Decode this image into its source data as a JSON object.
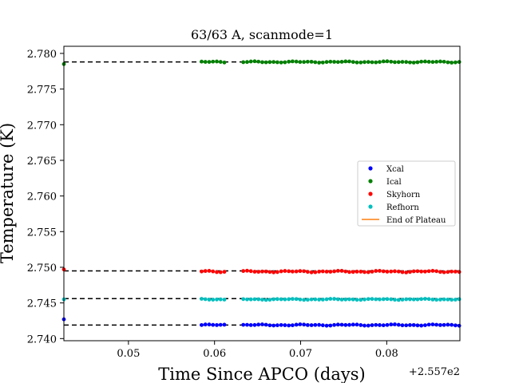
{
  "chart_data": {
    "type": "scatter",
    "title": "63/63 A, scanmode=1",
    "xlabel": "Time Since APCO (days)",
    "ylabel": "Temperature (K)",
    "x_offset_label": "+2.557e2",
    "xlim": [
      0.0425,
      0.0885
    ],
    "ylim": [
      2.7397,
      2.781
    ],
    "xticks": [
      0.05,
      0.06,
      0.07,
      0.08
    ],
    "xtick_labels": [
      "0.05",
      "0.06",
      "0.07",
      "0.08"
    ],
    "yticks": [
      2.74,
      2.745,
      2.75,
      2.755,
      2.76,
      2.765,
      2.77,
      2.775,
      2.78
    ],
    "ytick_labels": [
      "2.740",
      "2.745",
      "2.750",
      "2.755",
      "2.760",
      "2.765",
      "2.770",
      "2.775",
      "2.780"
    ],
    "grid": false,
    "legend_position": "right-center",
    "gap": [
      0.0612,
      0.0632
    ],
    "series": [
      {
        "name": "Xcal",
        "color": "#0000ff",
        "base": 2.7419,
        "first": 2.7427,
        "amp": 0.0001,
        "plateau": 2.7419
      },
      {
        "name": "Ical",
        "color": "#008000",
        "base": 2.7788,
        "first": 2.7785,
        "amp": 0.0001,
        "plateau": 2.7788
      },
      {
        "name": "Skyhorn",
        "color": "#ff0000",
        "base": 2.7494,
        "first": 2.7497,
        "amp": 0.00012,
        "plateau": 2.7495
      },
      {
        "name": "Refhorn",
        "color": "#00bfbf",
        "base": 2.7455,
        "first": 2.7455,
        "amp": 8e-05,
        "plateau": 2.7456
      }
    ],
    "extra_legend": [
      {
        "name": "End of Plateau",
        "color": "#ff7f0e",
        "kind": "line"
      }
    ]
  }
}
